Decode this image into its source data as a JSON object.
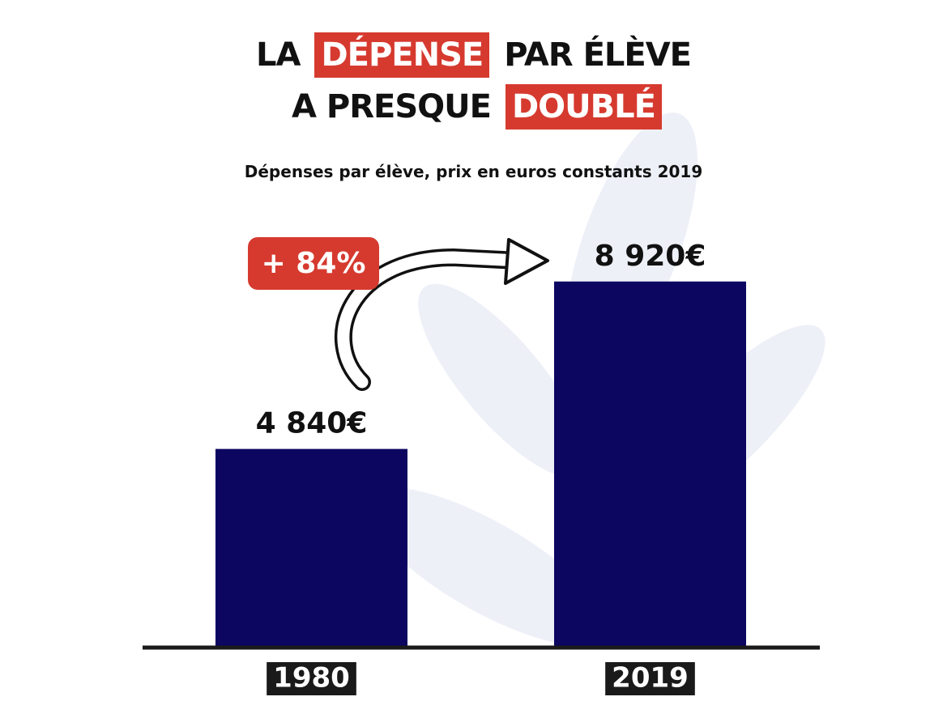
{
  "chart_data": {
    "type": "bar",
    "title_lines": [
      [
        {
          "text": "LA",
          "highlight": false
        },
        {
          "text": "DÉPENSE",
          "highlight": true
        },
        {
          "text": "PAR ÉLÈVE",
          "highlight": false
        }
      ],
      [
        {
          "text": "A PRESQUE",
          "highlight": false
        },
        {
          "text": "DOUBLÉ",
          "highlight": true
        }
      ]
    ],
    "subtitle": "Dépenses par élève, prix en euros constants 2019",
    "annotation": "+ 84%",
    "categories": [
      "1980",
      "2019"
    ],
    "values": [
      4840,
      8920
    ],
    "value_labels": [
      "4 840€",
      "8 920€"
    ],
    "color": "#0c0660",
    "highlight_color": "#d63a2f",
    "ylim": [
      0,
      10000
    ]
  }
}
